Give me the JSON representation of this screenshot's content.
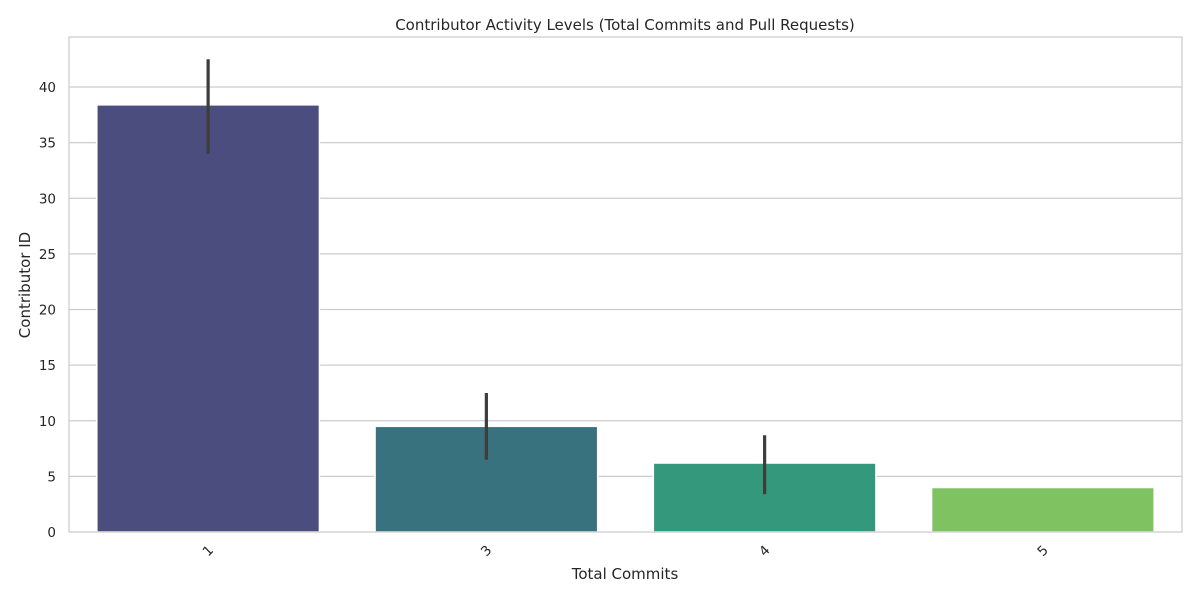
{
  "chart_data": {
    "type": "bar",
    "title": "Contributor Activity Levels (Total Commits and Pull Requests)",
    "xlabel": "Total Commits",
    "ylabel": "Contributor ID",
    "categories": [
      "1",
      "3",
      "4",
      "5"
    ],
    "values": [
      38.4,
      9.5,
      6.2,
      4.0
    ],
    "error_bars": [
      {
        "low": 34.0,
        "high": 42.5
      },
      {
        "low": 6.5,
        "high": 12.5
      },
      {
        "low": 3.4,
        "high": 8.7
      },
      null
    ],
    "colors": [
      "#4a4d7e",
      "#38727f",
      "#34997c",
      "#7fc261"
    ],
    "ylim": [
      0,
      44.5
    ],
    "yticks": [
      0,
      5,
      10,
      15,
      20,
      25,
      30,
      35,
      40
    ],
    "grid": true,
    "legend": "none",
    "xtick_rotation": 45
  }
}
